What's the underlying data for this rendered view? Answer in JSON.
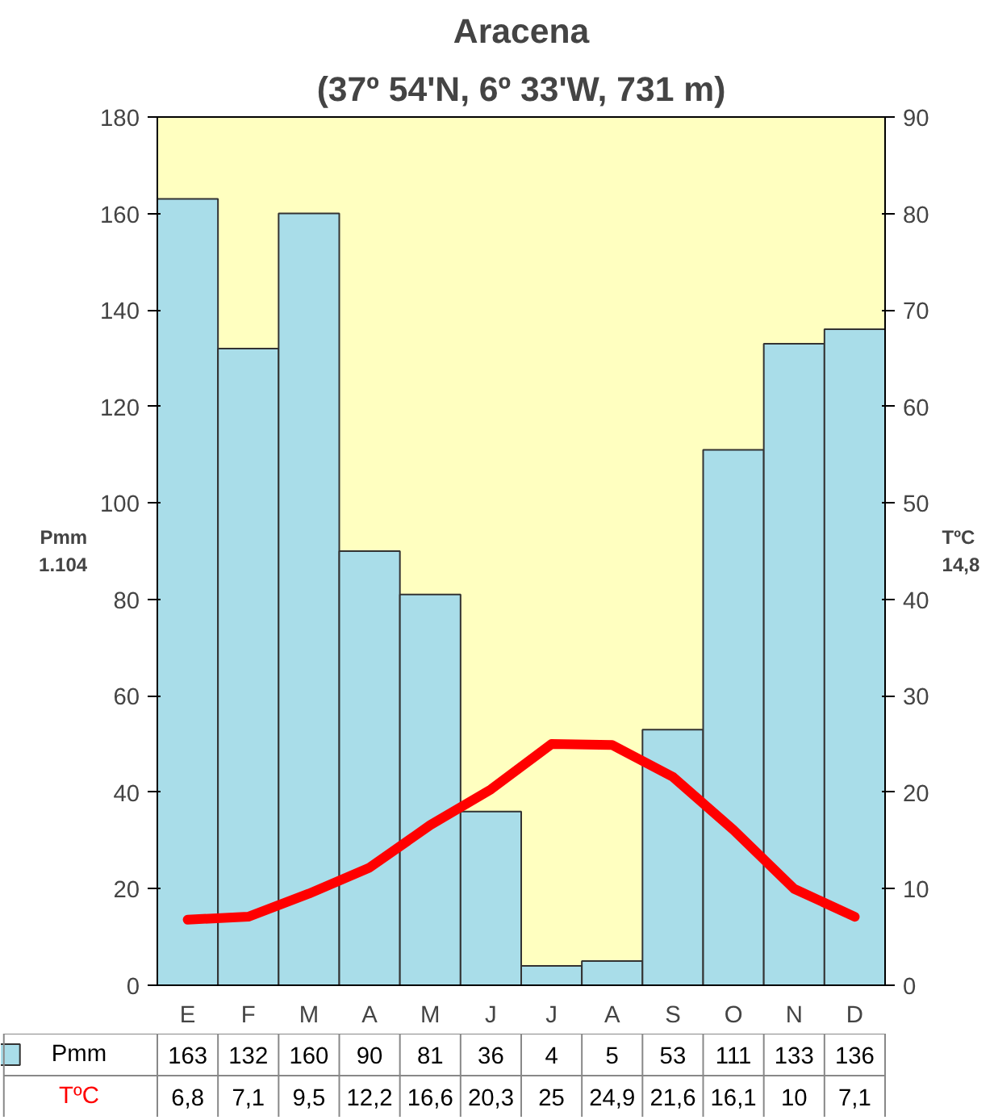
{
  "chart_data": {
    "type": "bar",
    "title": "Aracena",
    "subtitle": "(37º 54'N, 6º 33'W, 731 m)",
    "ylabel": "Pmm\n1.104",
    "y2label": "TºC\n14,8",
    "categories": [
      "E",
      "F",
      "M",
      "A",
      "M",
      "J",
      "J",
      "A",
      "S",
      "O",
      "N",
      "D"
    ],
    "series": [
      {
        "name": "Pmm",
        "color": "#a9dde9",
        "values": [
          163,
          132,
          160,
          90,
          81,
          36,
          4,
          5,
          53,
          111,
          133,
          136
        ],
        "value_labels": [
          "163",
          "132",
          "160",
          "90",
          "81",
          "36",
          "4",
          "5",
          "53",
          "111",
          "133",
          "136"
        ]
      },
      {
        "name": "TºC",
        "type": "line",
        "axis": "y2",
        "color": "#ff0000",
        "values": [
          6.8,
          7.1,
          9.5,
          12.2,
          16.6,
          20.3,
          25,
          24.9,
          21.6,
          16.1,
          10,
          7.1
        ],
        "value_labels": [
          "6,8",
          "7,1",
          "9,5",
          "12,2",
          "16,6",
          "20,3",
          "25",
          "24,9",
          "21,6",
          "16,1",
          "10",
          "7,1"
        ]
      }
    ],
    "ylim": [
      0,
      180
    ],
    "yticks": [
      0,
      20,
      40,
      60,
      80,
      100,
      120,
      140,
      160,
      180
    ],
    "y2lim": [
      0,
      90
    ],
    "y2ticks": [
      0,
      10,
      20,
      30,
      40,
      50,
      60,
      70,
      80,
      90
    ],
    "grid": false
  }
}
